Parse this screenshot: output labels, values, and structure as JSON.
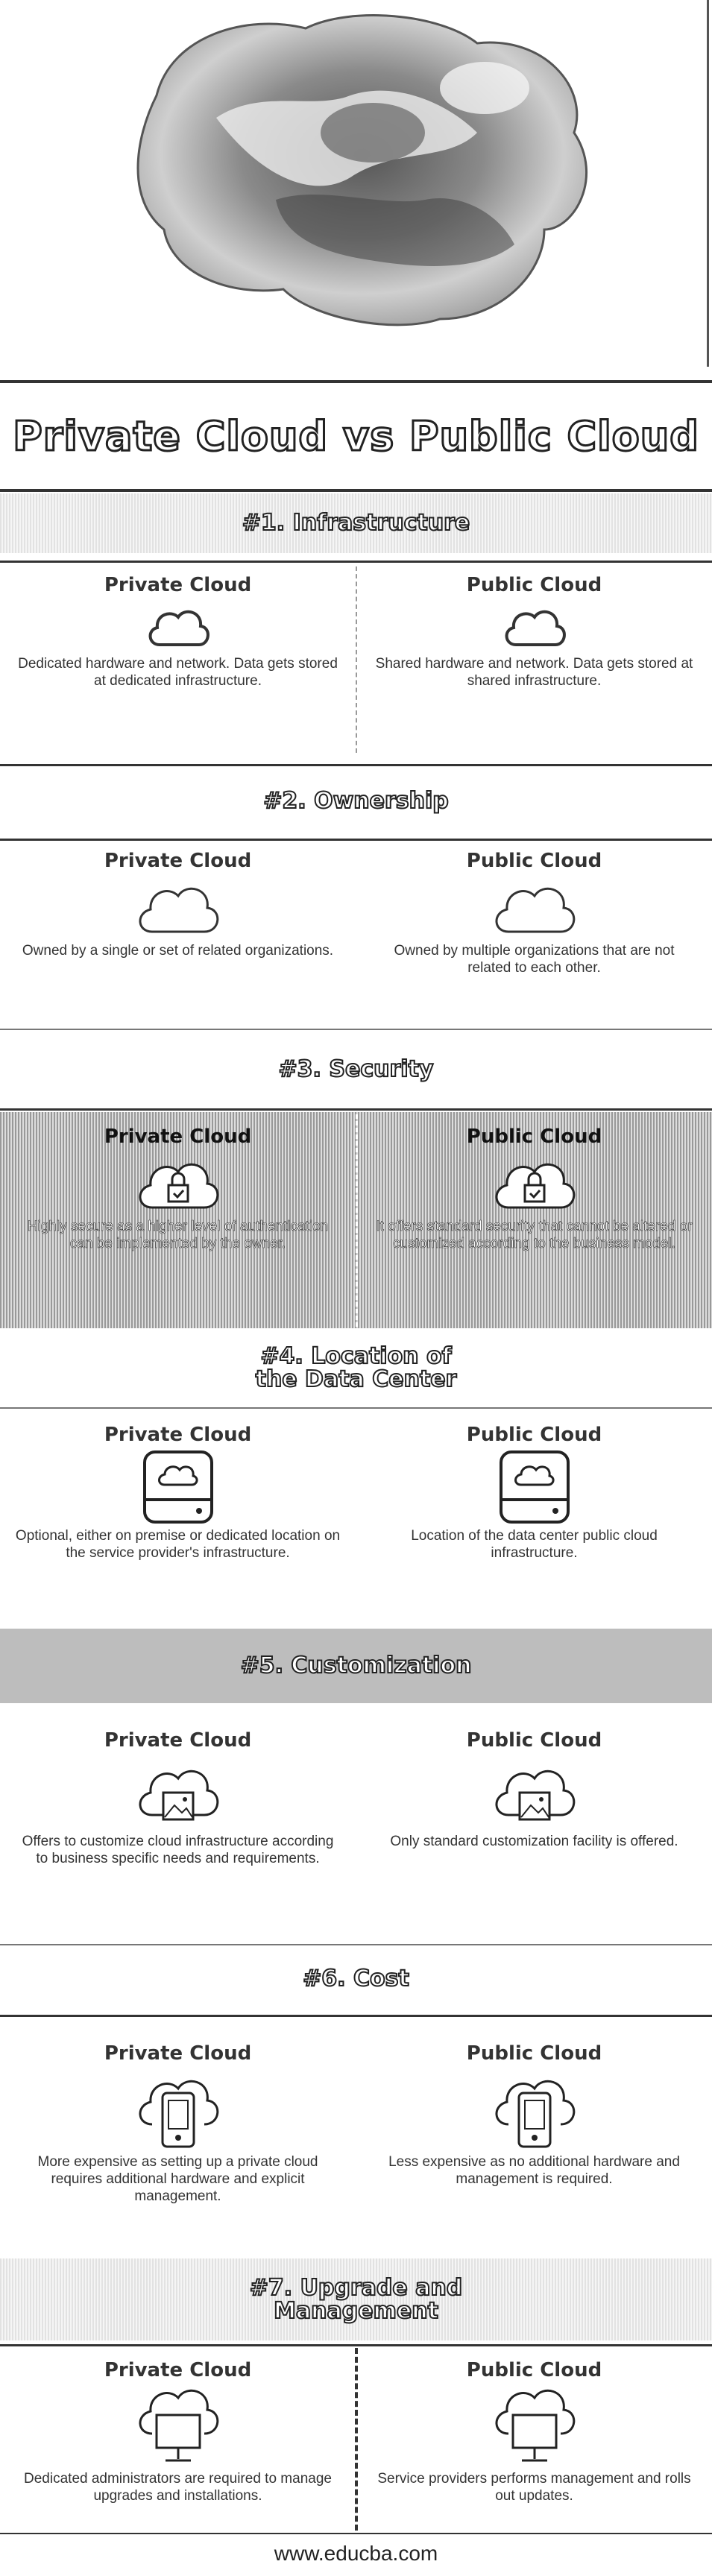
{
  "title": "Private Cloud vs Public Cloud",
  "footer": "www.educba.com",
  "col_labels": {
    "private": "Private Cloud",
    "public": "Public Cloud"
  },
  "sections": [
    {
      "heading": "#1. Infrastructure",
      "icon": "cloud-icon",
      "private": "Dedicated hardware and network. Data gets stored at dedicated infrastructure.",
      "public": "Shared hardware and network. Data gets stored at shared infrastructure."
    },
    {
      "heading": "#2. Ownership",
      "icon": "cloud-icon",
      "private": "Owned by a single or set of related organizations.",
      "public": "Owned by multiple organizations that are not related to each other."
    },
    {
      "heading": "#3. Security",
      "icon": "cloud-lock-icon",
      "private": "Highly secure as a higher level of authentication can be implemented by the owner.",
      "public": "It offers standard security that cannot be altered or customized according to the business model."
    },
    {
      "heading": "#4. Location of the Data Center",
      "icon": "server-drive-icon",
      "private": "Optional, either on premise or dedicated location on the service provider's infrastructure.",
      "public": "Location of the data center public cloud infrastructure."
    },
    {
      "heading": "#5. Customization",
      "icon": "cloud-image-icon",
      "private": "Offers to customize cloud infrastructure according to business specific needs and requirements.",
      "public": "Only standard customization facility is offered."
    },
    {
      "heading": "#6. Cost",
      "icon": "cloud-phone-icon",
      "private": "More expensive as setting up a private cloud requires additional hardware and explicit management.",
      "public": "Less expensive as no additional hardware and management is required."
    },
    {
      "heading": "#7. Upgrade and Management",
      "icon": "cloud-monitor-icon",
      "private": "Dedicated administrators are required to manage upgrades and installations.",
      "public": "Service providers performs management and rolls out updates."
    }
  ]
}
